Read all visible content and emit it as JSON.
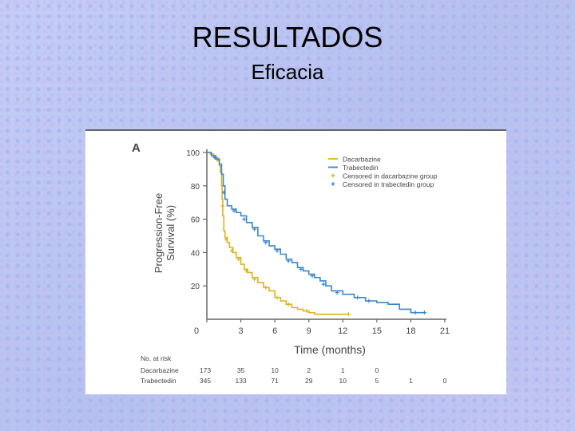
{
  "slide": {
    "title": "RESULTADOS",
    "subtitle": "Eficacia"
  },
  "chart_data": {
    "type": "line",
    "panel_label": "A",
    "xlabel": "Time (months)",
    "ylabel": "Progression-Free Survival (%)",
    "ylabel_lines": [
      "Progression-Free",
      "Survival (%)"
    ],
    "xlim": [
      0,
      21
    ],
    "ylim": [
      0,
      100
    ],
    "xticks": [
      "0",
      "3",
      "6",
      "9",
      "12",
      "15",
      "18",
      "21"
    ],
    "yticks": [
      "20",
      "40",
      "60",
      "80",
      "100"
    ],
    "legend": [
      {
        "label": "Dacarbazine",
        "color": "#e0b21a",
        "kind": "line"
      },
      {
        "label": "Trabectedin",
        "color": "#3a86c8",
        "kind": "line"
      },
      {
        "label": "Censored in dacarbazine group",
        "color": "#e0b21a",
        "kind": "plus"
      },
      {
        "label": "Censored in trabectedin group",
        "color": "#3a86c8",
        "kind": "plus"
      }
    ],
    "series": [
      {
        "name": "Dacarbazine",
        "color": "#e0b21a",
        "points": [
          [
            0,
            100
          ],
          [
            0.3,
            99
          ],
          [
            0.6,
            97
          ],
          [
            0.9,
            95
          ],
          [
            1.1,
            92
          ],
          [
            1.2,
            88
          ],
          [
            1.3,
            80
          ],
          [
            1.35,
            72
          ],
          [
            1.4,
            62
          ],
          [
            1.5,
            53
          ],
          [
            1.6,
            49
          ],
          [
            1.8,
            46
          ],
          [
            2.0,
            43
          ],
          [
            2.3,
            40
          ],
          [
            2.6,
            37
          ],
          [
            3.0,
            33
          ],
          [
            3.3,
            30
          ],
          [
            3.6,
            28
          ],
          [
            4.0,
            25
          ],
          [
            4.5,
            22
          ],
          [
            5.0,
            19
          ],
          [
            5.5,
            17
          ],
          [
            6.0,
            13
          ],
          [
            6.5,
            11
          ],
          [
            7.0,
            9
          ],
          [
            7.5,
            7
          ],
          [
            8.0,
            6
          ],
          [
            8.5,
            5
          ],
          [
            9.0,
            4
          ],
          [
            9.5,
            3
          ],
          [
            10,
            3
          ],
          [
            11,
            3
          ],
          [
            12,
            3
          ],
          [
            12.5,
            3
          ]
        ],
        "censored": [
          [
            1.0,
            96
          ],
          [
            1.4,
            68
          ],
          [
            1.7,
            48
          ],
          [
            2.2,
            41
          ],
          [
            2.8,
            36
          ],
          [
            3.5,
            29
          ],
          [
            4.2,
            24
          ],
          [
            5.2,
            19
          ],
          [
            6.2,
            13
          ],
          [
            7.2,
            9
          ],
          [
            8.8,
            5
          ],
          [
            12.5,
            3
          ]
        ]
      },
      {
        "name": "Trabectedin",
        "color": "#3a86c8",
        "points": [
          [
            0,
            100
          ],
          [
            0.4,
            98
          ],
          [
            0.8,
            96
          ],
          [
            1.1,
            93
          ],
          [
            1.3,
            87
          ],
          [
            1.45,
            80
          ],
          [
            1.6,
            72
          ],
          [
            1.8,
            68
          ],
          [
            2.2,
            66
          ],
          [
            2.6,
            64
          ],
          [
            3.0,
            62
          ],
          [
            3.5,
            58
          ],
          [
            4.0,
            55
          ],
          [
            4.5,
            50
          ],
          [
            5.0,
            47
          ],
          [
            5.5,
            44
          ],
          [
            6.0,
            42
          ],
          [
            6.5,
            39
          ],
          [
            7.0,
            36
          ],
          [
            7.5,
            34
          ],
          [
            8.0,
            31
          ],
          [
            8.5,
            29
          ],
          [
            9.0,
            27
          ],
          [
            9.5,
            25
          ],
          [
            10,
            23
          ],
          [
            10.5,
            20
          ],
          [
            11,
            17
          ],
          [
            12,
            15
          ],
          [
            13,
            13
          ],
          [
            14,
            11
          ],
          [
            15,
            10
          ],
          [
            16,
            9
          ],
          [
            17,
            6
          ],
          [
            18,
            4
          ],
          [
            19,
            4
          ],
          [
            19.2,
            4
          ]
        ],
        "censored": [
          [
            0.7,
            97
          ],
          [
            1.5,
            76
          ],
          [
            2.4,
            65
          ],
          [
            3.3,
            60
          ],
          [
            4.2,
            54
          ],
          [
            5.2,
            46
          ],
          [
            6.2,
            41
          ],
          [
            7.2,
            35
          ],
          [
            8.3,
            30
          ],
          [
            9.3,
            26
          ],
          [
            10.3,
            21
          ],
          [
            11.5,
            16
          ],
          [
            13.3,
            13
          ],
          [
            14.3,
            11
          ],
          [
            18.4,
            4
          ],
          [
            19.2,
            4
          ]
        ]
      }
    ],
    "at_risk": {
      "header": "No. at risk",
      "times": [
        0,
        3,
        6,
        9,
        12,
        15,
        18,
        21
      ],
      "rows": [
        {
          "label": "Dacarbazine",
          "values": [
            "173",
            "35",
            "10",
            "2",
            "1",
            "0"
          ]
        },
        {
          "label": "Trabectedin",
          "values": [
            "345",
            "133",
            "71",
            "29",
            "10",
            "5",
            "1",
            "0"
          ]
        }
      ]
    }
  }
}
